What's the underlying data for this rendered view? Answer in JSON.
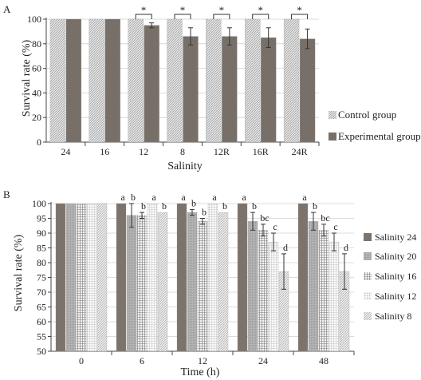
{
  "colors": {
    "control": "#d8d8d8",
    "experimental": "#7b736c",
    "salinity_24": "#7b736c",
    "salinity_20": "#a9a9a9",
    "salinity_16": "#cfcfcf",
    "salinity_12": "#efefef",
    "salinity_8": "#e0e0e0",
    "axis": "#444444",
    "grid": "#d0d0d0"
  },
  "chart_data": [
    {
      "panel_label": "A",
      "type": "bar",
      "categories": [
        "24",
        "16",
        "12",
        "8",
        "12R",
        "16R",
        "24R"
      ],
      "series": [
        {
          "name": "Control group",
          "values": [
            100,
            100,
            100,
            100,
            100,
            100,
            100
          ],
          "errors": [
            0,
            0,
            0,
            0,
            0,
            0,
            0
          ]
        },
        {
          "name": "Experimental group",
          "values": [
            100,
            100,
            95,
            86,
            86,
            85,
            84
          ],
          "errors": [
            0,
            0,
            2,
            7,
            7,
            8,
            8
          ]
        }
      ],
      "significance": [
        "",
        "",
        "*",
        "*",
        "*",
        "*",
        "*"
      ],
      "xlabel": "Salinity",
      "ylabel": "Survival rate (%)",
      "ylim": [
        0,
        100
      ],
      "yticks": [
        0,
        20,
        40,
        60,
        80,
        100
      ],
      "grid": true,
      "legend_position": "right"
    },
    {
      "panel_label": "B",
      "type": "bar",
      "categories": [
        "0",
        "6",
        "12",
        "24",
        "48"
      ],
      "series": [
        {
          "name": "Salinity 24",
          "values": [
            100,
            100,
            100,
            100,
            100
          ],
          "errors": [
            0,
            0,
            0,
            0,
            0
          ],
          "letters": [
            "",
            "a",
            "a",
            "a",
            "a"
          ]
        },
        {
          "name": "Salinity 20",
          "values": [
            100,
            96,
            97,
            94,
            94
          ],
          "errors": [
            0,
            4,
            1,
            3,
            3
          ],
          "letters": [
            "",
            "b",
            "b",
            "b",
            "b"
          ]
        },
        {
          "name": "Salinity 16",
          "values": [
            100,
            96,
            94,
            91,
            91
          ],
          "errors": [
            0,
            1,
            1,
            2,
            2
          ],
          "letters": [
            "",
            "b",
            "b",
            "bc",
            "bc"
          ]
        },
        {
          "name": "Salinity 12",
          "values": [
            100,
            100,
            100,
            87,
            87
          ],
          "errors": [
            0,
            0,
            0,
            3,
            3
          ],
          "letters": [
            "",
            "a",
            "a",
            "c",
            "c"
          ]
        },
        {
          "name": "Salinity 8",
          "values": [
            100,
            97,
            97,
            77,
            77
          ],
          "errors": [
            0,
            0,
            0,
            6,
            6
          ],
          "letters": [
            "",
            "b",
            "b",
            "d",
            "d"
          ]
        }
      ],
      "xlabel": "Time (h)",
      "ylabel": "Survival rate (%)",
      "ylim": [
        50,
        100
      ],
      "yticks": [
        50,
        55,
        60,
        65,
        70,
        75,
        80,
        85,
        90,
        95,
        100
      ],
      "grid": true,
      "legend_position": "right"
    }
  ]
}
